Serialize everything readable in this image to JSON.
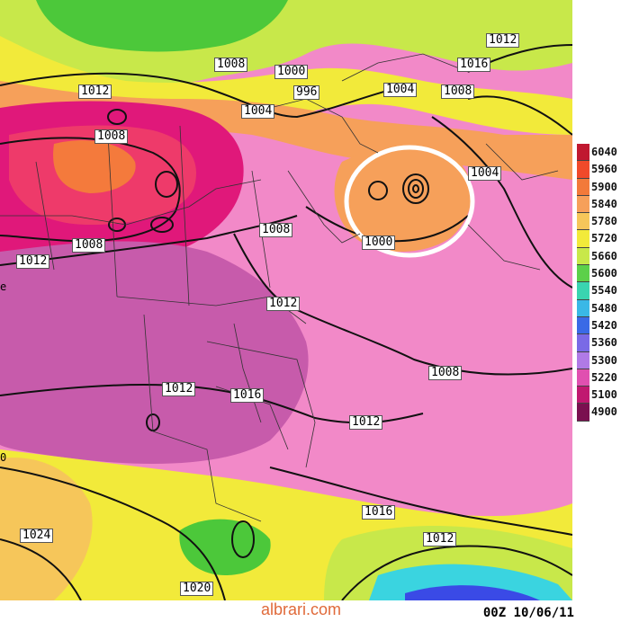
{
  "colors": {
    "lava": "#e0187a",
    "hot": "#ee5599",
    "warm_pink": "#f289c8",
    "mauve": "#c75bab",
    "orange": "#f47a3c",
    "yellow": "#f2ea3a",
    "lime": "#b6e03a",
    "green": "#4cc83a",
    "cyan": "#3ad4e0",
    "blue": "#3a4ae6"
  },
  "isobar_labels": [
    "1012",
    "1016",
    "1008",
    "1000",
    "996",
    "1004",
    "1012",
    "1008",
    "1008",
    "1004",
    "1004",
    "1008",
    "1012",
    "1000",
    "1008",
    "1012",
    "1012",
    "1016",
    "1012",
    "1016",
    "1024",
    "1012",
    "1020",
    "1008"
  ],
  "legend": [
    "6040",
    "5960",
    "5900",
    "5840",
    "5780",
    "5720",
    "5660",
    "5600",
    "5540",
    "5480",
    "5420",
    "5360",
    "5300",
    "5220",
    "5100",
    "4900"
  ],
  "legend_colors": [
    "#c01830",
    "#f04a2a",
    "#f27a3a",
    "#f6a05a",
    "#f6c65a",
    "#f2ea3a",
    "#c8e84a",
    "#5cd04a",
    "#3ad4b0",
    "#3ab8e6",
    "#3a6ae6",
    "#7a6ae6",
    "#b07ae6",
    "#e050b0",
    "#c01870",
    "#7a1050"
  ],
  "timestamp": "00Z 10/06/11",
  "watermark": "albrari.com",
  "edge_text": {
    "left_top": "e",
    "left_bottom": "0"
  }
}
